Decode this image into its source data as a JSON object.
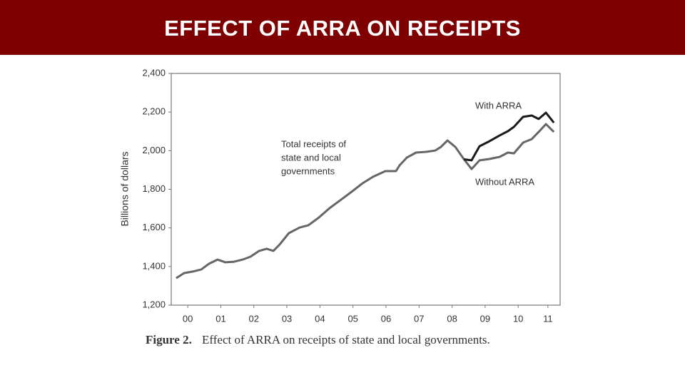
{
  "header": {
    "title": "EFFECT OF ARRA ON RECEIPTS"
  },
  "chart_data": {
    "type": "line",
    "y_label": "Billions of dollars",
    "annotation": [
      "Total receipts of",
      "state and local",
      "governments"
    ],
    "caption": {
      "label": "Figure 2.",
      "text": "Effect of ARRA on receipts of state and local governments."
    },
    "x": [
      2000.15,
      2000.39,
      2000.65,
      2000.91,
      2001.14,
      2001.4,
      2001.64,
      2001.9,
      2002.16,
      2002.4,
      2002.66,
      2002.89,
      2003.09,
      2003.28,
      2003.56,
      2003.89,
      2004.15,
      2004.47,
      2004.79,
      2005.14,
      2005.46,
      2005.79,
      2006.11,
      2006.48,
      2006.8,
      2006.91,
      2007.13,
      2007.41,
      2007.71,
      2007.99,
      2008.16,
      2008.36,
      2008.6,
      2008.86,
      2009.09,
      2009.33,
      2009.63,
      2009.94,
      2010.19,
      2010.37,
      2010.65,
      2010.91,
      2011.12,
      2011.34,
      2011.58
    ],
    "series": [
      {
        "name": "With ARRA",
        "color": "#1a1a1a",
        "values": [
          null,
          null,
          null,
          null,
          null,
          null,
          null,
          null,
          null,
          null,
          null,
          null,
          null,
          null,
          null,
          null,
          null,
          null,
          null,
          null,
          null,
          null,
          null,
          null,
          null,
          null,
          null,
          null,
          null,
          null,
          null,
          null,
          null,
          1955,
          1950,
          2023,
          2049,
          2079,
          2101,
          2123,
          2175,
          2182,
          2164,
          2197,
          2145
        ]
      },
      {
        "name": "Without ARRA",
        "color": "#666666",
        "values": [
          1340,
          1366,
          1374,
          1385,
          1414,
          1436,
          1422,
          1425,
          1436,
          1451,
          1481,
          1492,
          1481,
          1514,
          1573,
          1602,
          1614,
          1654,
          1702,
          1746,
          1787,
          1831,
          1865,
          1894,
          1894,
          1924,
          1964,
          1990,
          1994,
          2001,
          2019,
          2053,
          2019,
          1955,
          1905,
          1950,
          1957,
          1968,
          1990,
          1986,
          2042,
          2060,
          2097,
          2138,
          2097
        ]
      }
    ],
    "xlim": [
      2000,
      2011.77
    ],
    "xticks": [
      {
        "value": 2000.5,
        "label": "00"
      },
      {
        "value": 2001.5,
        "label": "01"
      },
      {
        "value": 2002.5,
        "label": "02"
      },
      {
        "value": 2003.5,
        "label": "03"
      },
      {
        "value": 2004.5,
        "label": "04"
      },
      {
        "value": 2005.5,
        "label": "05"
      },
      {
        "value": 2006.5,
        "label": "06"
      },
      {
        "value": 2007.5,
        "label": "07"
      },
      {
        "value": 2008.5,
        "label": "08"
      },
      {
        "value": 2009.5,
        "label": "09"
      },
      {
        "value": 2010.5,
        "label": "10"
      },
      {
        "value": 2011.4,
        "label": "11"
      }
    ],
    "ylim": [
      1200,
      2400
    ],
    "yticks": [
      {
        "value": 1200,
        "label": "1,200"
      },
      {
        "value": 1400,
        "label": "1,400"
      },
      {
        "value": 1600,
        "label": "1,600"
      },
      {
        "value": 1800,
        "label": "1,800"
      },
      {
        "value": 2000,
        "label": "2,000"
      },
      {
        "value": 2200,
        "label": "2,200"
      },
      {
        "value": 2400,
        "label": "2,400"
      }
    ],
    "grid": false
  }
}
